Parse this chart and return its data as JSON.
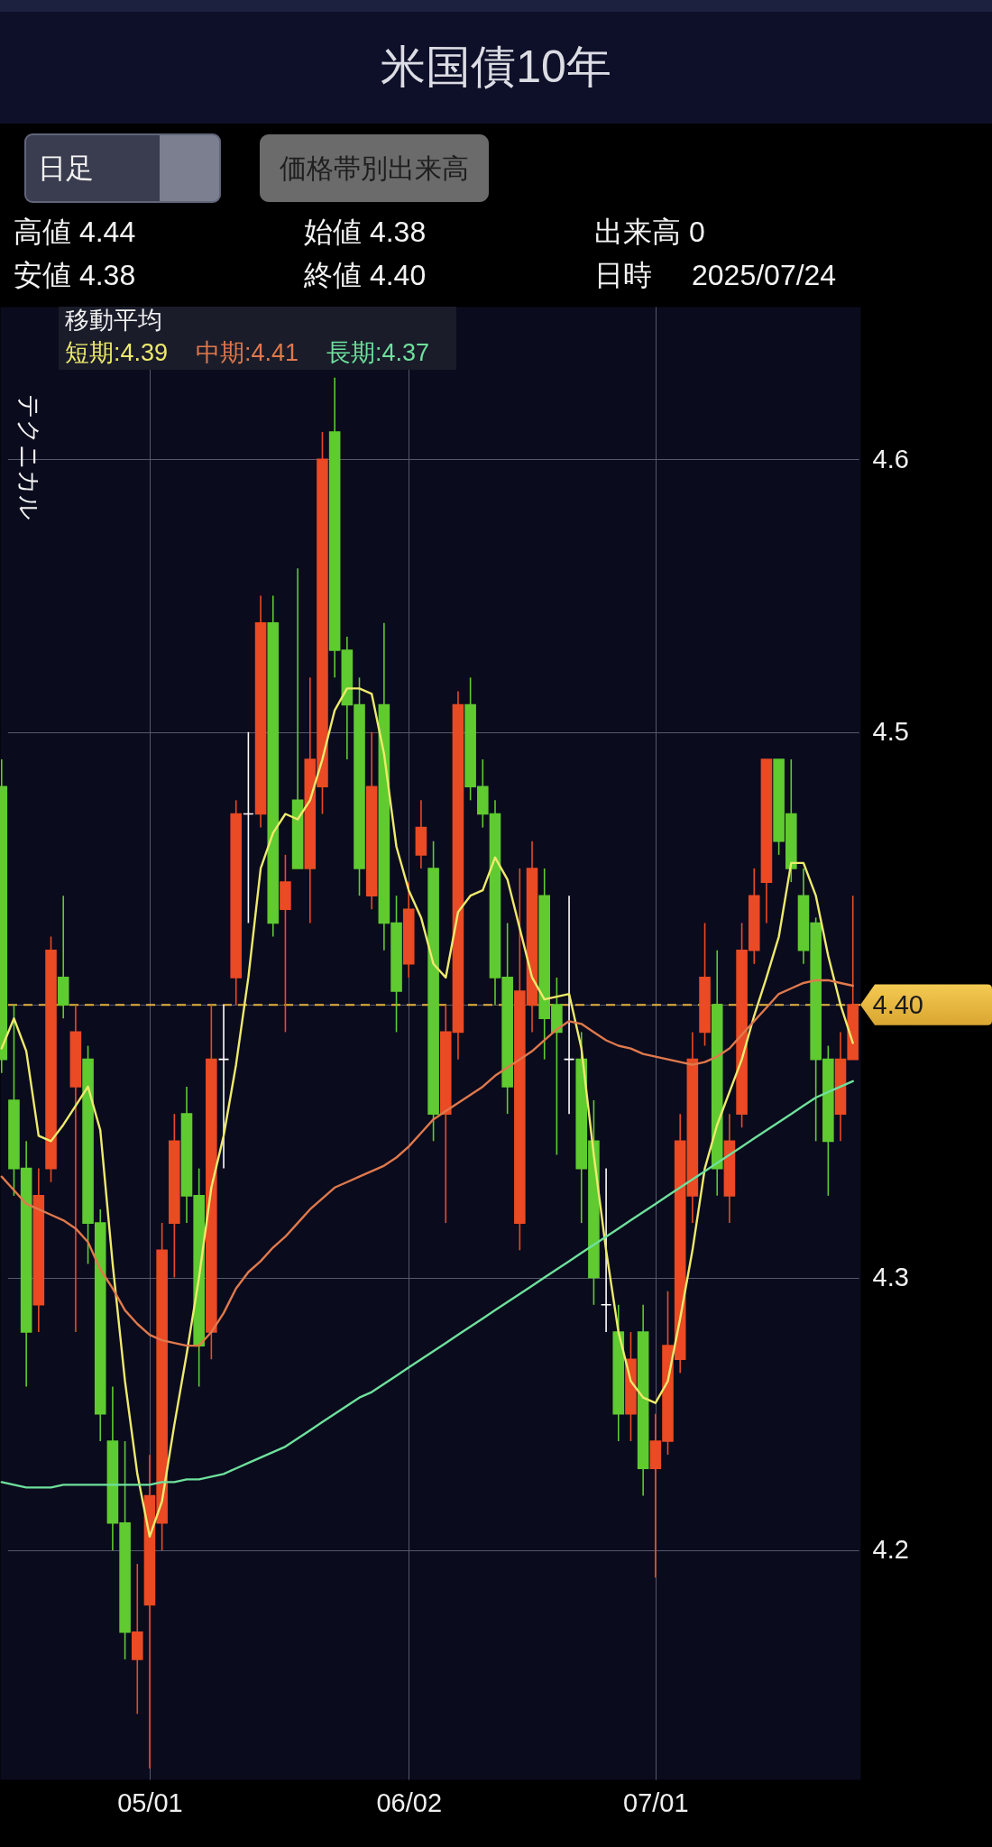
{
  "chart_data": {
    "type": "candlestick",
    "title": "米国債10年",
    "categories": [
      null,
      null,
      null,
      null,
      null,
      null,
      null,
      null,
      null,
      null,
      null,
      null,
      "05/01",
      null,
      null,
      null,
      null,
      null,
      null,
      null,
      null,
      null,
      null,
      null,
      null,
      null,
      null,
      null,
      null,
      null,
      null,
      null,
      null,
      "06/02",
      null,
      null,
      null,
      null,
      null,
      null,
      null,
      null,
      null,
      null,
      null,
      null,
      null,
      null,
      null,
      null,
      null,
      null,
      null,
      "07/01",
      null,
      null,
      null,
      null,
      null,
      null,
      null,
      null,
      null,
      null,
      null,
      null,
      null,
      null,
      null,
      null
    ],
    "ohlc": [
      [
        4.48,
        4.49,
        4.375,
        4.38
      ],
      [
        4.365,
        4.4,
        4.33,
        4.34
      ],
      [
        4.34,
        4.35,
        4.26,
        4.28
      ],
      [
        4.29,
        4.34,
        4.28,
        4.33
      ],
      [
        4.34,
        4.425,
        4.335,
        4.42
      ],
      [
        4.41,
        4.44,
        4.395,
        4.4
      ],
      [
        4.37,
        4.4,
        4.28,
        4.39
      ],
      [
        4.38,
        4.385,
        4.305,
        4.32
      ],
      [
        4.32,
        4.325,
        4.24,
        4.25
      ],
      [
        4.24,
        4.26,
        4.2,
        4.21
      ],
      [
        4.21,
        4.24,
        4.16,
        4.17
      ],
      [
        4.16,
        4.195,
        4.14,
        4.17
      ],
      [
        4.18,
        4.235,
        4.12,
        4.22
      ],
      [
        4.21,
        4.32,
        4.2,
        4.31
      ],
      [
        4.32,
        4.36,
        4.3,
        4.35
      ],
      [
        4.36,
        4.37,
        4.32,
        4.33
      ],
      [
        4.33,
        4.34,
        4.26,
        4.275
      ],
      [
        4.28,
        4.4,
        4.27,
        4.38
      ],
      [
        4.38,
        4.4,
        4.34,
        4.38
      ],
      [
        4.41,
        4.475,
        4.4,
        4.47
      ],
      [
        4.47,
        4.5,
        4.43,
        4.47
      ],
      [
        4.47,
        4.55,
        4.465,
        4.54
      ],
      [
        4.54,
        4.55,
        4.425,
        4.43
      ],
      [
        4.435,
        4.455,
        4.39,
        4.445
      ],
      [
        4.475,
        4.56,
        4.45,
        4.45
      ],
      [
        4.45,
        4.52,
        4.43,
        4.49
      ],
      [
        4.48,
        4.61,
        4.47,
        4.6
      ],
      [
        4.61,
        4.63,
        4.52,
        4.53
      ],
      [
        4.53,
        4.535,
        4.49,
        4.51
      ],
      [
        4.51,
        4.52,
        4.44,
        4.45
      ],
      [
        4.44,
        4.5,
        4.435,
        4.48
      ],
      [
        4.51,
        4.54,
        4.42,
        4.43
      ],
      [
        4.43,
        4.44,
        4.39,
        4.405
      ],
      [
        4.415,
        4.445,
        4.41,
        4.435
      ],
      [
        4.455,
        4.475,
        4.45,
        4.465
      ],
      [
        4.45,
        4.46,
        4.35,
        4.36
      ],
      [
        4.36,
        4.4,
        4.32,
        4.39
      ],
      [
        4.39,
        4.515,
        4.38,
        4.51
      ],
      [
        4.51,
        4.52,
        4.475,
        4.48
      ],
      [
        4.48,
        4.49,
        4.465,
        4.47
      ],
      [
        4.47,
        4.475,
        4.4,
        4.41
      ],
      [
        4.41,
        4.43,
        4.36,
        4.37
      ],
      [
        4.32,
        4.45,
        4.31,
        4.405
      ],
      [
        4.4,
        4.46,
        4.39,
        4.45
      ],
      [
        4.44,
        4.45,
        4.38,
        4.395
      ],
      [
        4.4,
        4.41,
        4.345,
        4.39
      ],
      [
        4.38,
        4.44,
        4.36,
        4.38
      ],
      [
        4.38,
        4.39,
        4.32,
        4.34
      ],
      [
        4.35,
        4.365,
        4.29,
        4.3
      ],
      [
        4.29,
        4.34,
        4.28,
        4.29
      ],
      [
        4.28,
        4.29,
        4.24,
        4.25
      ],
      [
        4.25,
        4.28,
        4.24,
        4.27
      ],
      [
        4.28,
        4.29,
        4.22,
        4.23
      ],
      [
        4.23,
        4.25,
        4.19,
        4.24
      ],
      [
        4.24,
        4.295,
        4.235,
        4.275
      ],
      [
        4.27,
        4.36,
        4.265,
        4.35
      ],
      [
        4.33,
        4.39,
        4.32,
        4.38
      ],
      [
        4.39,
        4.43,
        4.385,
        4.41
      ],
      [
        4.4,
        4.42,
        4.33,
        4.34
      ],
      [
        4.33,
        4.36,
        4.32,
        4.35
      ],
      [
        4.36,
        4.43,
        4.355,
        4.42
      ],
      [
        4.42,
        4.45,
        4.415,
        4.44
      ],
      [
        4.445,
        4.49,
        4.43,
        4.49
      ],
      [
        4.49,
        4.49,
        4.455,
        4.46
      ],
      [
        4.47,
        4.49,
        4.445,
        4.45
      ],
      [
        4.44,
        4.45,
        4.415,
        4.42
      ],
      [
        4.43,
        4.432,
        4.35,
        4.38
      ],
      [
        4.38,
        4.385,
        4.33,
        4.35
      ],
      [
        4.36,
        4.39,
        4.35,
        4.38
      ],
      [
        4.38,
        4.44,
        4.38,
        4.4
      ]
    ],
    "colors": [
      "#5fcb30",
      "#5fcb30",
      "#5fcb30",
      "#ea4a24",
      "#ea4a24",
      "#5fcb30",
      "#ea4a24",
      "#5fcb30",
      "#5fcb30",
      "#5fcb30",
      "#5fcb30",
      "#ea4a24",
      "#ea4a24",
      "#ea4a24",
      "#ea4a24",
      "#5fcb30",
      "#5fcb30",
      "#ea4a24",
      "#ffffff",
      "#ea4a24",
      "#ffffff",
      "#ea4a24",
      "#5fcb30",
      "#ea4a24",
      "#5fcb30",
      "#ea4a24",
      "#ea4a24",
      "#5fcb30",
      "#5fcb30",
      "#5fcb30",
      "#ea4a24",
      "#5fcb30",
      "#5fcb30",
      "#ea4a24",
      "#ea4a24",
      "#5fcb30",
      "#ea4a24",
      "#ea4a24",
      "#5fcb30",
      "#5fcb30",
      "#5fcb30",
      "#5fcb30",
      "#ea4a24",
      "#ea4a24",
      "#5fcb30",
      "#5fcb30",
      "#ffffff",
      "#5fcb30",
      "#5fcb30",
      "#ffffff",
      "#5fcb30",
      "#ea4a24",
      "#5fcb30",
      "#ea4a24",
      "#ea4a24",
      "#ea4a24",
      "#ea4a24",
      "#ea4a24",
      "#5fcb30",
      "#ea4a24",
      "#ea4a24",
      "#ea4a24",
      "#ea4a24",
      "#5fcb30",
      "#5fcb30",
      "#5fcb30",
      "#5fcb30",
      "#5fcb30",
      "#ea4a24",
      "#ea4a24"
    ],
    "series": [
      {
        "name": "短期:4.39",
        "color": "#eeea6c",
        "type": "line",
        "values": [
          4.384,
          4.395,
          4.383,
          4.352,
          4.35,
          4.356,
          4.363,
          4.37,
          4.354,
          4.305,
          4.262,
          4.228,
          4.205,
          4.218,
          4.246,
          4.272,
          4.3,
          4.333,
          4.352,
          4.378,
          4.41,
          4.45,
          4.463,
          4.47,
          4.468,
          4.475,
          4.49,
          4.508,
          4.516,
          4.516,
          4.514,
          4.492,
          4.458,
          4.442,
          4.432,
          4.415,
          4.41,
          4.434,
          4.44,
          4.442,
          4.454,
          4.446,
          4.428,
          4.41,
          4.402,
          4.403,
          4.404,
          4.384,
          4.345,
          4.31,
          4.28,
          4.262,
          4.256,
          4.254,
          4.262,
          4.285,
          4.31,
          4.34,
          4.356,
          4.368,
          4.38,
          4.396,
          4.41,
          4.425,
          4.452,
          4.452,
          4.44,
          4.418,
          4.4,
          4.386
        ]
      },
      {
        "name": "中期:4.41",
        "color": "#e0794c",
        "type": "line",
        "values": [
          4.337,
          4.332,
          4.327,
          4.325,
          4.323,
          4.321,
          4.318,
          4.313,
          4.303,
          4.296,
          4.288,
          4.283,
          4.279,
          4.277,
          4.276,
          4.275,
          4.275,
          4.28,
          4.287,
          4.296,
          4.302,
          4.306,
          4.311,
          4.315,
          4.32,
          4.325,
          4.329,
          4.333,
          4.335,
          4.337,
          4.339,
          4.341,
          4.344,
          4.348,
          4.353,
          4.358,
          4.361,
          4.364,
          4.367,
          4.37,
          4.374,
          4.377,
          4.38,
          4.383,
          4.387,
          4.391,
          4.394,
          4.393,
          4.39,
          4.387,
          4.385,
          4.384,
          4.382,
          4.381,
          4.38,
          4.379,
          4.378,
          4.379,
          4.381,
          4.384,
          4.389,
          4.394,
          4.399,
          4.404,
          4.406,
          4.408,
          4.409,
          4.409,
          4.408,
          4.407
        ]
      },
      {
        "name": "長期:4.37",
        "color": "#6ee19c",
        "type": "line",
        "values": [
          4.225,
          4.224,
          4.223,
          4.223,
          4.223,
          4.224,
          4.224,
          4.224,
          4.224,
          4.224,
          4.224,
          4.224,
          4.224,
          4.225,
          4.225,
          4.226,
          4.226,
          4.227,
          4.228,
          4.23,
          4.232,
          4.234,
          4.236,
          4.238,
          4.241,
          4.244,
          4.247,
          4.25,
          4.253,
          4.256,
          4.258,
          4.261,
          4.264,
          4.267,
          4.27,
          4.273,
          4.276,
          4.279,
          4.282,
          4.285,
          4.288,
          4.291,
          4.294,
          4.297,
          4.3,
          4.303,
          4.306,
          4.309,
          4.312,
          4.315,
          4.318,
          4.321,
          4.324,
          4.327,
          4.33,
          4.333,
          4.336,
          4.339,
          4.342,
          4.345,
          4.348,
          4.351,
          4.354,
          4.357,
          4.36,
          4.363,
          4.366,
          4.368,
          4.37,
          4.372
        ]
      }
    ],
    "legend_title": "移動平均",
    "legend": "top left",
    "ylim": [
      4.116,
      4.656
    ],
    "yticks": [
      4.2,
      4.3,
      {
        "value": 4.4,
        "label": "4.40"
      },
      4.5,
      4.6
    ],
    "grid": true,
    "ref_lines": [
      {
        "axis": "y",
        "value": 4.4,
        "color": "#e6b43c",
        "line_style": "dashed"
      }
    ],
    "annotations": [
      "日足",
      "価格帯別出来高",
      "高値 4.44",
      "始値 4.38",
      "出来高 0",
      "安値 4.38",
      "終値 4.40",
      "日時",
      "2025/07/24",
      "テクニカル"
    ]
  }
}
